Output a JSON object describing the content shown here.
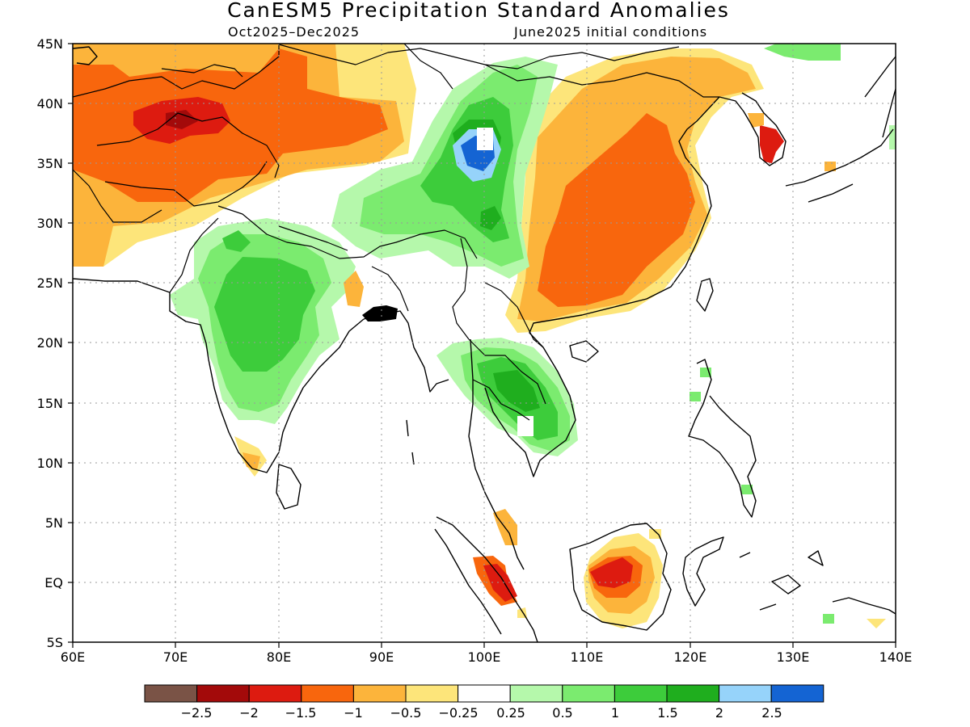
{
  "title": "CanESM5 Precipitation Standard Anomalies",
  "subtitle_left": "Oct2025–Dec2025",
  "subtitle_right": "June2025 initial conditions",
  "lon_ticks": [
    "60E",
    "70E",
    "80E",
    "90E",
    "100E",
    "110E",
    "120E",
    "130E",
    "140E"
  ],
  "lat_ticks": [
    "45N",
    "40N",
    "35N",
    "30N",
    "25N",
    "20N",
    "15N",
    "10N",
    "5N",
    "EQ",
    "5S"
  ],
  "colorbar": {
    "colors": [
      "#7a5346",
      "#a30a0a",
      "#dd1b10",
      "#f8660d",
      "#fcb43b",
      "#fde57a",
      "#ffffff",
      "#b5f8ab",
      "#7beb6f",
      "#3dcc3b",
      "#1fae1e",
      "#96d3fa",
      "#1464d3"
    ],
    "labels": [
      "−2.5",
      "−2",
      "−1.5",
      "−1",
      "−0.5",
      "−0.25",
      "0.25",
      "0.5",
      "1",
      "1.5",
      "2",
      "2.5"
    ]
  },
  "extent": {
    "lon": [
      60,
      140
    ],
    "lat": [
      -5,
      45
    ]
  }
}
